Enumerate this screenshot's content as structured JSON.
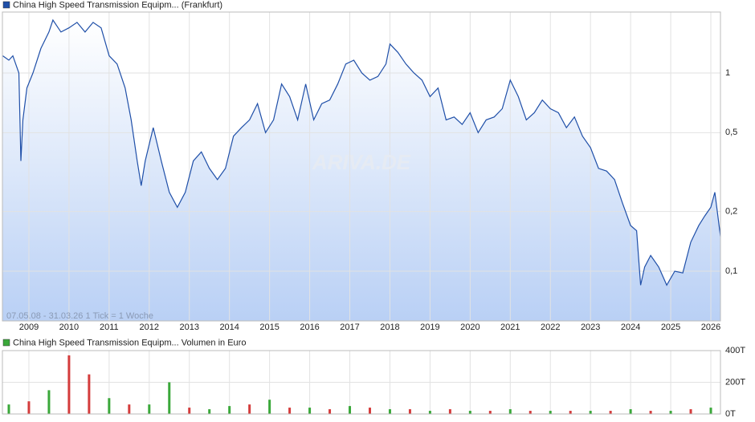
{
  "chart_data": [
    {
      "type": "line",
      "title": "China High Speed Transmission Equipm... (Frankfurt)",
      "info_text": "07.05.08 - 31.03.26   1 Tick = 1 Woche",
      "watermark": "ARIVA.DE",
      "log_scale": true,
      "grid": true,
      "x": [
        2008.35,
        2008.5,
        2008.6,
        2008.75,
        2008.8,
        2008.85,
        2008.95,
        2009.1,
        2009.3,
        2009.5,
        2009.6,
        2009.8,
        2010.0,
        2010.2,
        2010.4,
        2010.6,
        2010.8,
        2011.0,
        2011.2,
        2011.4,
        2011.55,
        2011.7,
        2011.8,
        2011.9,
        2012.1,
        2012.3,
        2012.5,
        2012.7,
        2012.9,
        2013.1,
        2013.3,
        2013.5,
        2013.7,
        2013.9,
        2014.1,
        2014.3,
        2014.5,
        2014.7,
        2014.9,
        2015.1,
        2015.3,
        2015.5,
        2015.7,
        2015.9,
        2016.1,
        2016.3,
        2016.5,
        2016.7,
        2016.9,
        2017.1,
        2017.3,
        2017.5,
        2017.7,
        2017.9,
        2018.0,
        2018.2,
        2018.4,
        2018.6,
        2018.8,
        2019.0,
        2019.2,
        2019.4,
        2019.6,
        2019.8,
        2020.0,
        2020.2,
        2020.4,
        2020.6,
        2020.8,
        2021.0,
        2021.2,
        2021.4,
        2021.6,
        2021.8,
        2022.0,
        2022.2,
        2022.4,
        2022.6,
        2022.8,
        2023.0,
        2023.2,
        2023.4,
        2023.6,
        2023.8,
        2024.0,
        2024.15,
        2024.25,
        2024.35,
        2024.5,
        2024.7,
        2024.9,
        2025.1,
        2025.3,
        2025.5,
        2025.7,
        2025.85,
        2026.0,
        2026.1,
        2026.24
      ],
      "series": [
        {
          "name": "China High Speed Transmission Equipm... (Frankfurt)",
          "color": "#1f4fa8",
          "values": [
            1.22,
            1.16,
            1.22,
            1.0,
            0.36,
            0.58,
            0.84,
            1.0,
            1.33,
            1.61,
            1.85,
            1.61,
            1.69,
            1.8,
            1.61,
            1.8,
            1.69,
            1.22,
            1.11,
            0.84,
            0.58,
            0.36,
            0.27,
            0.36,
            0.53,
            0.36,
            0.25,
            0.21,
            0.25,
            0.36,
            0.4,
            0.33,
            0.29,
            0.33,
            0.48,
            0.53,
            0.58,
            0.7,
            0.5,
            0.58,
            0.88,
            0.76,
            0.58,
            0.88,
            0.58,
            0.7,
            0.73,
            0.88,
            1.11,
            1.16,
            1.0,
            0.92,
            0.96,
            1.11,
            1.4,
            1.27,
            1.11,
            1.0,
            0.92,
            0.76,
            0.84,
            0.58,
            0.6,
            0.55,
            0.63,
            0.5,
            0.58,
            0.6,
            0.66,
            0.92,
            0.76,
            0.58,
            0.63,
            0.73,
            0.66,
            0.63,
            0.53,
            0.6,
            0.48,
            0.42,
            0.33,
            0.32,
            0.29,
            0.22,
            0.17,
            0.16,
            0.085,
            0.105,
            0.12,
            0.105,
            0.085,
            0.1,
            0.098,
            0.14,
            0.17,
            0.19,
            0.21,
            0.25,
            0.15
          ]
        }
      ],
      "xlim": [
        2008.34,
        2026.24
      ],
      "xticks": [
        2009,
        2010,
        2011,
        2012,
        2013,
        2014,
        2015,
        2016,
        2017,
        2018,
        2019,
        2020,
        2021,
        2022,
        2023,
        2024,
        2025,
        2026
      ],
      "ylim": [
        0.0561,
        2.03
      ],
      "yticks": [
        {
          "value": 0.1,
          "label": "0,1"
        },
        {
          "value": 0.2,
          "label": "0,2"
        },
        {
          "value": 0.5,
          "label": "0,5"
        },
        1
      ]
    },
    {
      "type": "bar",
      "title": "China High Speed Transmission Equipm... Volumen in Euro",
      "legend_color": "#3aa83a",
      "grid": true,
      "x": [
        2008.5,
        2009,
        2009.5,
        2010,
        2010.5,
        2011,
        2011.5,
        2012,
        2012.5,
        2013,
        2013.5,
        2014,
        2014.5,
        2015,
        2015.5,
        2016,
        2016.5,
        2017,
        2017.5,
        2018,
        2018.5,
        2019,
        2019.5,
        2020,
        2020.5,
        2021,
        2021.5,
        2022,
        2022.5,
        2023,
        2023.5,
        2024,
        2024.5,
        2025,
        2025.5,
        2026
      ],
      "values": [
        60,
        80,
        150,
        370,
        250,
        100,
        60,
        60,
        200,
        40,
        30,
        50,
        60,
        90,
        40,
        40,
        30,
        50,
        40,
        30,
        30,
        20,
        30,
        20,
        20,
        30,
        20,
        20,
        20,
        20,
        20,
        30,
        20,
        20,
        30,
        40
      ],
      "colors": [
        "#3aa83a",
        "#d43c3c",
        "#3aa83a",
        "#d43c3c",
        "#d43c3c",
        "#3aa83a",
        "#d43c3c",
        "#3aa83a",
        "#3aa83a",
        "#d43c3c",
        "#3aa83a",
        "#3aa83a",
        "#d43c3c",
        "#3aa83a",
        "#d43c3c",
        "#3aa83a",
        "#d43c3c",
        "#3aa83a",
        "#d43c3c",
        "#3aa83a",
        "#d43c3c",
        "#3aa83a",
        "#d43c3c",
        "#3aa83a",
        "#d43c3c",
        "#3aa83a",
        "#d43c3c",
        "#3aa83a",
        "#d43c3c",
        "#3aa83a",
        "#d43c3c",
        "#3aa83a",
        "#d43c3c",
        "#3aa83a",
        "#d43c3c",
        "#3aa83a"
      ],
      "xlim": [
        2008.34,
        2026.24
      ],
      "ylim": [
        0,
        400
      ],
      "yticks": [
        {
          "value": 0,
          "label": "0T"
        },
        {
          "value": 200,
          "label": "200T"
        },
        {
          "value": 400,
          "label": "400T"
        }
      ]
    }
  ]
}
